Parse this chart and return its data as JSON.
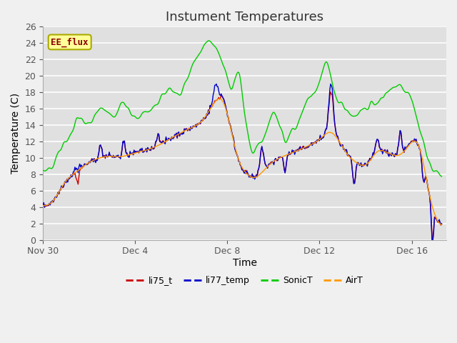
{
  "title": "Instument Temperatures",
  "xlabel": "Time",
  "ylabel": "Temperature (C)",
  "ylim": [
    0,
    26
  ],
  "xlim": [
    0,
    17.5
  ],
  "x_tick_positions": [
    0,
    4,
    8,
    12,
    16
  ],
  "x_tick_labels": [
    "Nov 30",
    "Dec 4",
    "Dec 8",
    "Dec 12",
    "Dec 16"
  ],
  "legend_labels": [
    "li75_t",
    "li77_temp",
    "SonicT",
    "AirT"
  ],
  "line_colors": [
    "#cc0000",
    "#0000cc",
    "#00cc00",
    "#ff9900"
  ],
  "annotation_text": "EE_flux",
  "annotation_color": "#8b0000",
  "annotation_bg": "#ffff99",
  "bg_color": "#e0e0e0",
  "fig_bg": "#f0f0f0",
  "title_fontsize": 13,
  "axis_label_fontsize": 10,
  "tick_fontsize": 9,
  "legend_fontsize": 9
}
